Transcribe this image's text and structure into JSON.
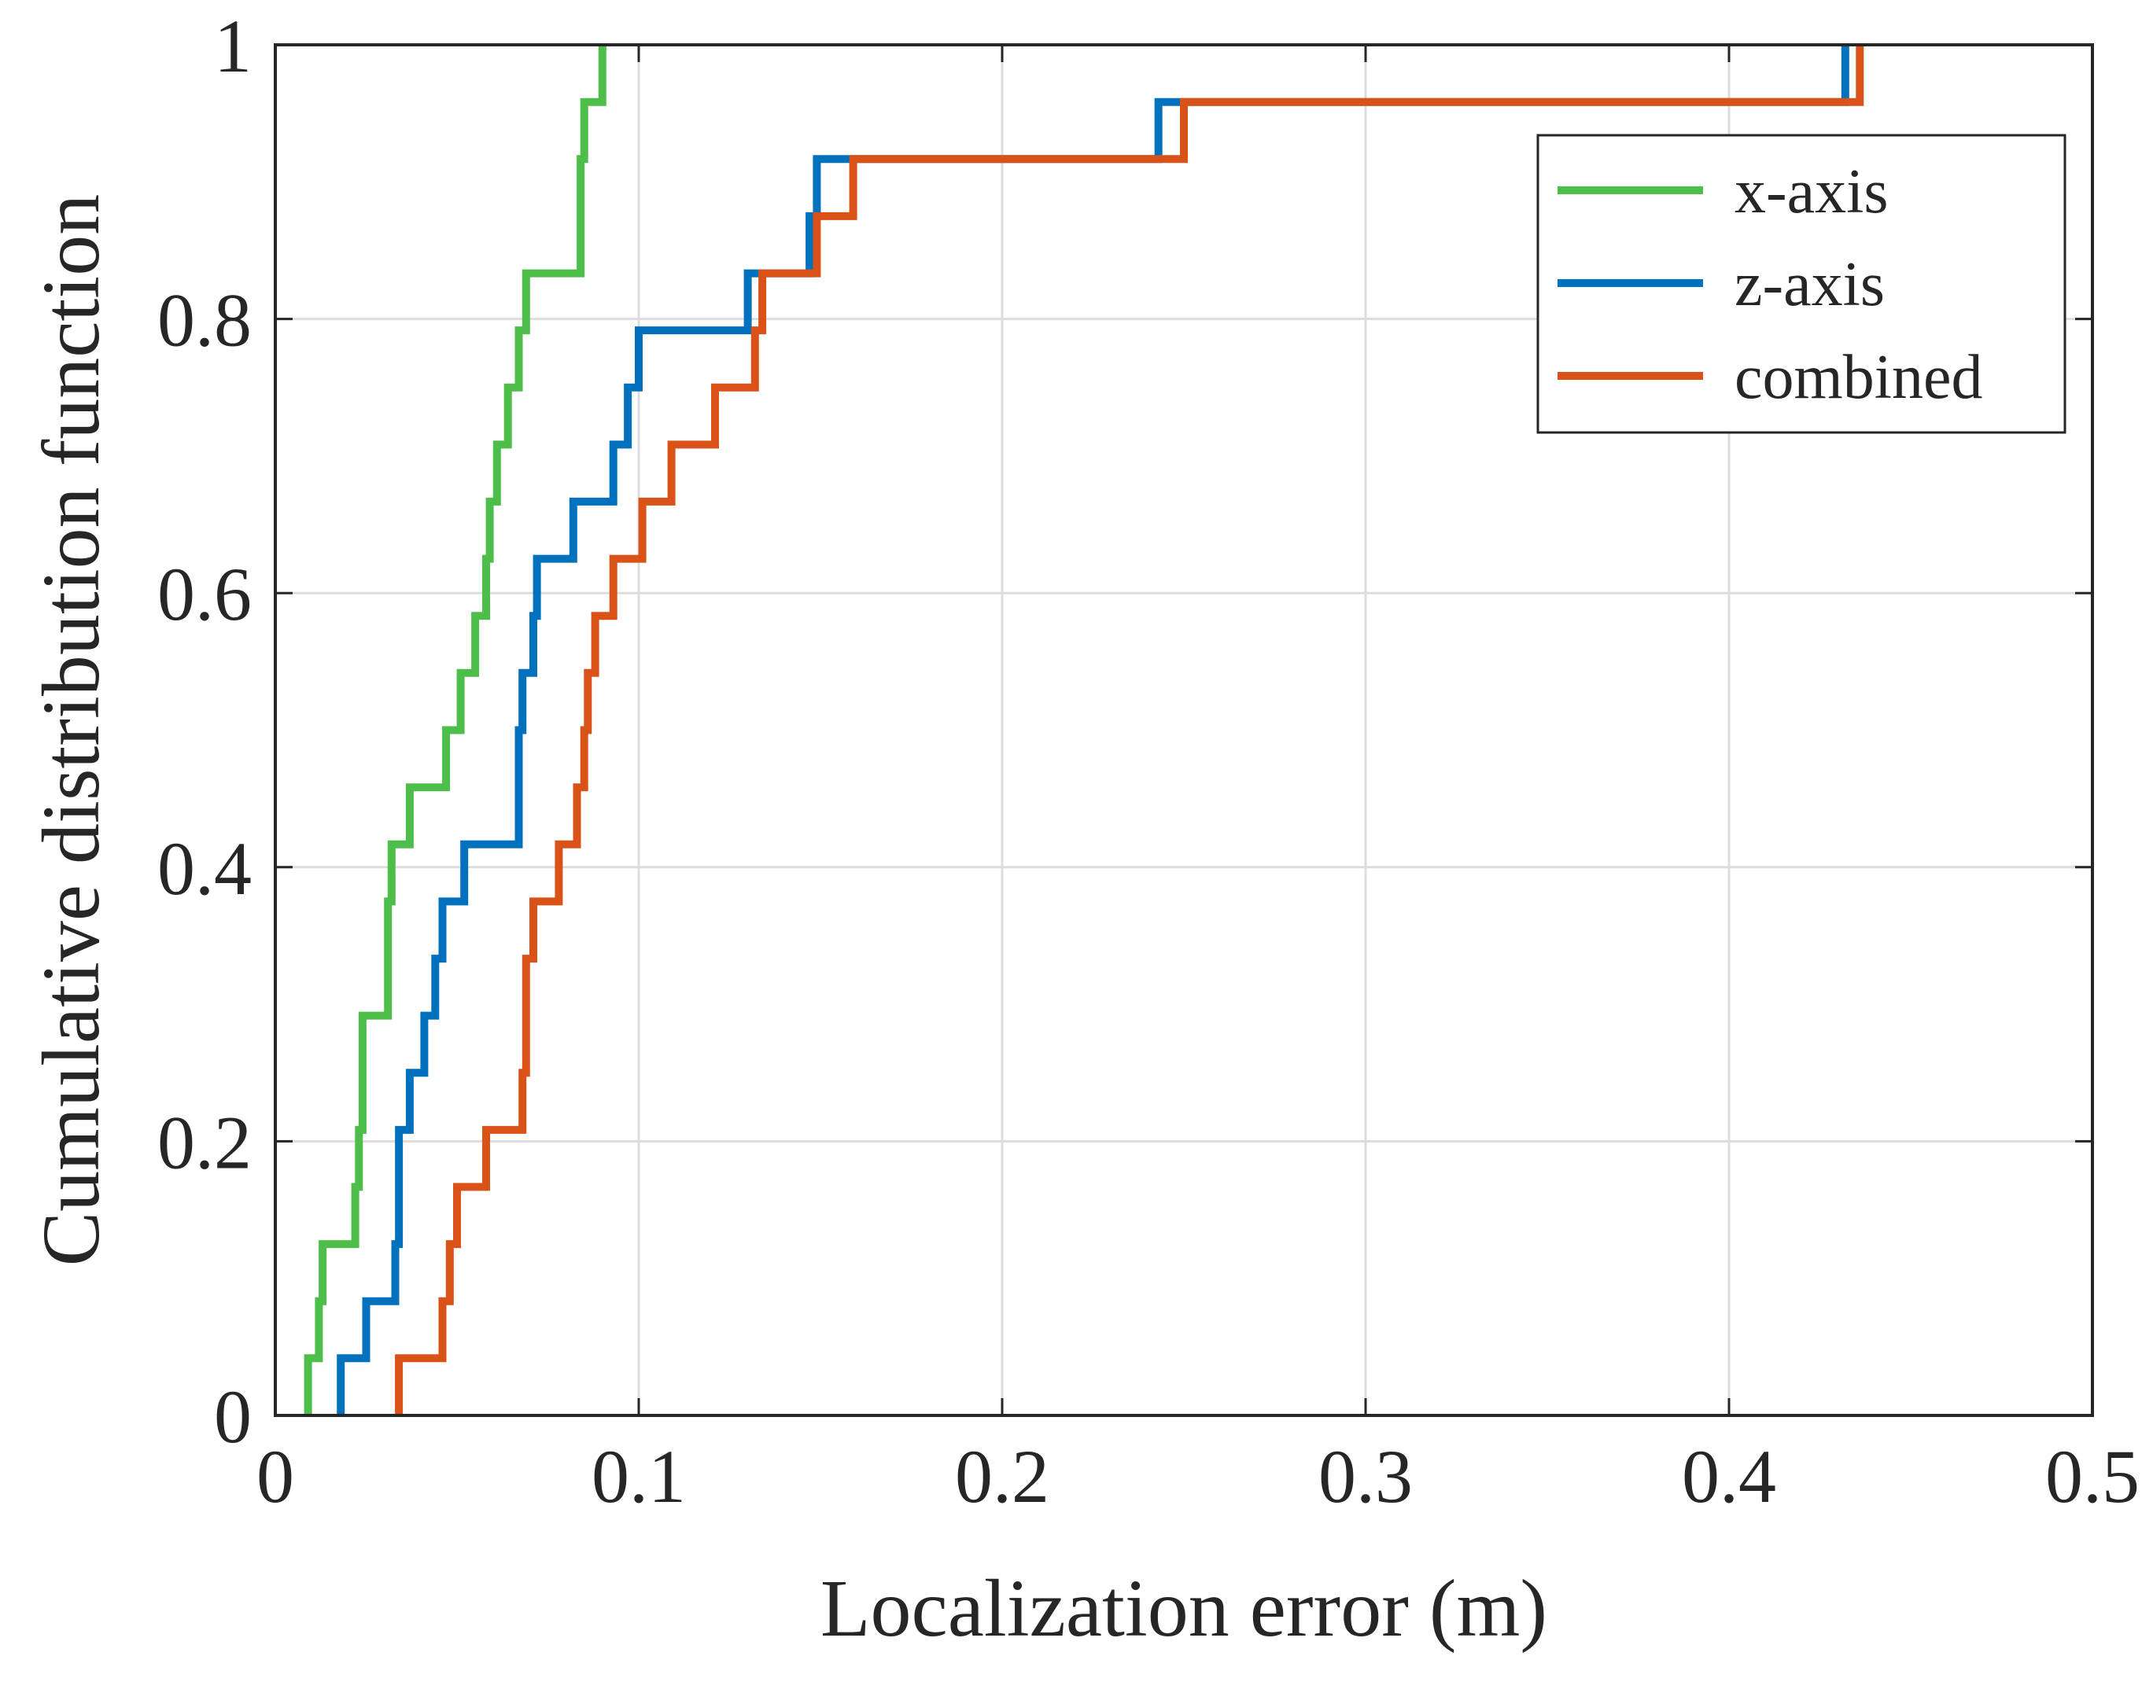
{
  "chart_data": {
    "type": "line",
    "step": true,
    "title": "",
    "xlabel": "Localization error (m)",
    "ylabel": "Cumulative distribution function",
    "xlim": [
      0,
      0.5
    ],
    "ylim": [
      0,
      1
    ],
    "xticks": [
      0,
      0.1,
      0.2,
      0.3,
      0.4,
      0.5
    ],
    "xtick_labels": [
      "0",
      "0.1",
      "0.2",
      "0.3",
      "0.4",
      "0.5"
    ],
    "yticks": [
      0,
      0.2,
      0.4,
      0.6,
      0.8,
      1
    ],
    "ytick_labels": [
      "0",
      "0.2",
      "0.4",
      "0.6",
      "0.8",
      "1"
    ],
    "grid": true,
    "legend_position": "top-right",
    "series": [
      {
        "name": "x-axis",
        "color": "#4DBE4A",
        "steps": [
          [
            0.009,
            0.0417
          ],
          [
            0.012,
            0.0833
          ],
          [
            0.013,
            0.125
          ],
          [
            0.022,
            0.1667
          ],
          [
            0.023,
            0.2083
          ],
          [
            0.024,
            0.25
          ],
          [
            0.024,
            0.2917
          ],
          [
            0.031,
            0.375
          ],
          [
            0.032,
            0.4167
          ],
          [
            0.037,
            0.4583
          ],
          [
            0.047,
            0.5
          ],
          [
            0.051,
            0.5417
          ],
          [
            0.055,
            0.5833
          ],
          [
            0.058,
            0.625
          ],
          [
            0.059,
            0.6667
          ],
          [
            0.061,
            0.7083
          ],
          [
            0.064,
            0.75
          ],
          [
            0.067,
            0.7917
          ],
          [
            0.069,
            0.8333
          ],
          [
            0.084,
            0.875
          ],
          [
            0.084,
            0.9167
          ],
          [
            0.085,
            0.9583
          ],
          [
            0.09,
            1.0
          ]
        ]
      },
      {
        "name": "z-axis",
        "color": "#0072BD",
        "steps": [
          [
            0.018,
            0.0417
          ],
          [
            0.025,
            0.0833
          ],
          [
            0.033,
            0.125
          ],
          [
            0.034,
            0.2083
          ],
          [
            0.037,
            0.25
          ],
          [
            0.041,
            0.2917
          ],
          [
            0.044,
            0.3333
          ],
          [
            0.046,
            0.375
          ],
          [
            0.052,
            0.4167
          ],
          [
            0.067,
            0.5
          ],
          [
            0.068,
            0.5417
          ],
          [
            0.071,
            0.5833
          ],
          [
            0.072,
            0.625
          ],
          [
            0.082,
            0.6667
          ],
          [
            0.093,
            0.7083
          ],
          [
            0.097,
            0.75
          ],
          [
            0.1,
            0.7917
          ],
          [
            0.13,
            0.8333
          ],
          [
            0.147,
            0.875
          ],
          [
            0.149,
            0.9167
          ],
          [
            0.243,
            0.9583
          ],
          [
            0.432,
            1.0
          ]
        ]
      },
      {
        "name": "combined",
        "color": "#D95319",
        "steps": [
          [
            0.034,
            0.0417
          ],
          [
            0.046,
            0.0833
          ],
          [
            0.048,
            0.125
          ],
          [
            0.05,
            0.1667
          ],
          [
            0.058,
            0.2083
          ],
          [
            0.068,
            0.25
          ],
          [
            0.069,
            0.2917
          ],
          [
            0.069,
            0.3333
          ],
          [
            0.071,
            0.375
          ],
          [
            0.078,
            0.4167
          ],
          [
            0.083,
            0.4583
          ],
          [
            0.085,
            0.5
          ],
          [
            0.086,
            0.5417
          ],
          [
            0.088,
            0.5833
          ],
          [
            0.093,
            0.625
          ],
          [
            0.101,
            0.6667
          ],
          [
            0.109,
            0.7083
          ],
          [
            0.121,
            0.75
          ],
          [
            0.132,
            0.7917
          ],
          [
            0.134,
            0.8333
          ],
          [
            0.149,
            0.875
          ],
          [
            0.159,
            0.9167
          ],
          [
            0.25,
            0.9583
          ],
          [
            0.436,
            1.0
          ]
        ]
      }
    ]
  }
}
